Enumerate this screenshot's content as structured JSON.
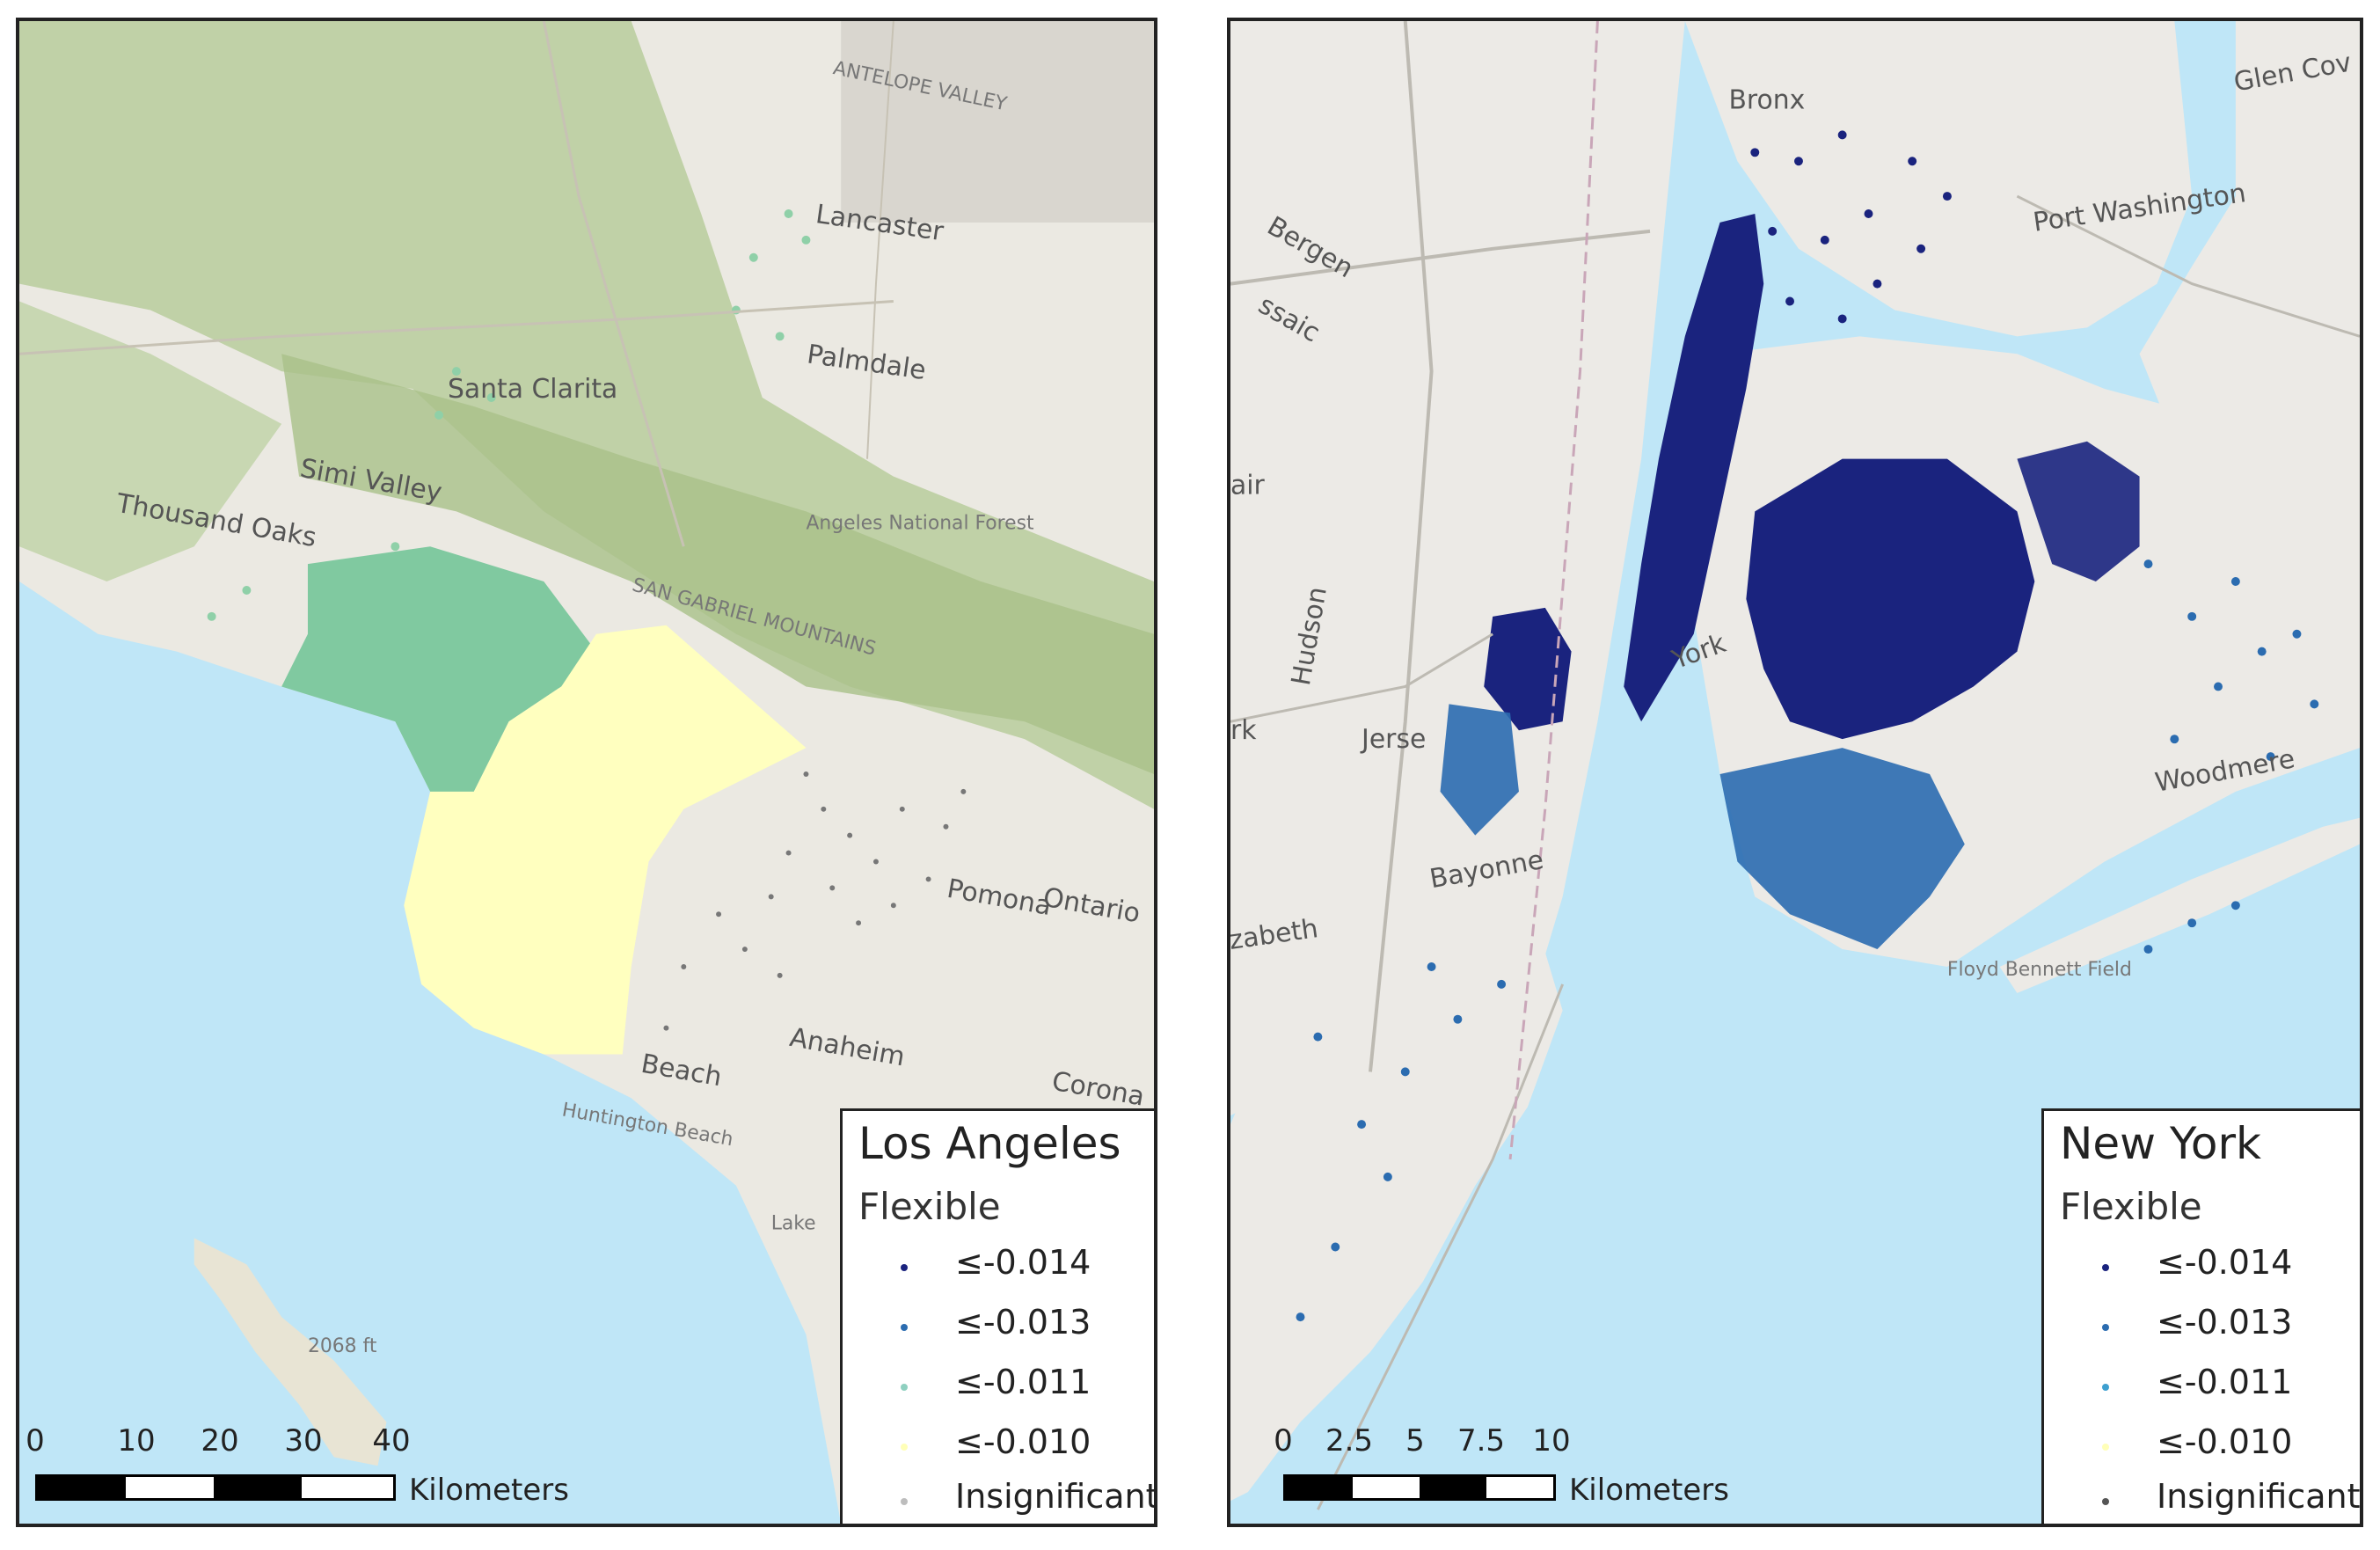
{
  "maps": {
    "la": {
      "places": {
        "antelope_valley": "ANTELOPE VALLEY",
        "lancaster": "Lancaster",
        "palmdale": "Palmdale",
        "santa_clarita": "Santa Clarita",
        "simi_valley": "Simi Valley",
        "thousand_oaks": "Thousand Oaks",
        "angeles_nf": "Angeles National Forest",
        "san_gabriel": "SAN GABRIEL MOUNTAINS",
        "pomona": "Pomona",
        "ontario": "Ontario",
        "anaheim": "Anaheim",
        "corona": "Corona",
        "huntington_beach": "Huntington Beach",
        "long_beach": "Beach",
        "lake": "Lake",
        "elev": "2068 ft"
      },
      "legend": {
        "title": "Los Angeles",
        "subtitle": "Flexible",
        "items": [
          {
            "label": "≤-0.014",
            "color": "#1a237e"
          },
          {
            "label": "≤-0.013",
            "color": "#2b6cb0"
          },
          {
            "label": "≤-0.011",
            "color": "#8fd0c0"
          },
          {
            "label": "≤-0.010",
            "color": "#ffffb8"
          },
          {
            "label": "Insignificant",
            "color": "#bdbdbd"
          }
        ]
      },
      "scale": {
        "ticks": [
          "0",
          "10",
          "20",
          "30",
          "40"
        ],
        "unit": "Kilometers"
      }
    },
    "ny": {
      "places": {
        "glen_cove": "Glen Cov",
        "bronx": "Bronx",
        "port_washington": "Port Washington",
        "bergen": "Bergen",
        "passaic": "ssaic",
        "fair": "air",
        "hudson": "Hudson",
        "jersey_city": "Jerse",
        "bayonne": "Bayonne",
        "elizabeth": "zabeth",
        "woodmere": "Woodmere",
        "floyd_bennett": "Floyd Bennett Field",
        "york": "York",
        "rk": "rk"
      },
      "legend": {
        "title": "New York",
        "subtitle": "Flexible",
        "items": [
          {
            "label": "≤-0.014",
            "color": "#1a237e"
          },
          {
            "label": "≤-0.013",
            "color": "#2b6cb0"
          },
          {
            "label": "≤-0.011",
            "color": "#3ea0d0"
          },
          {
            "label": "≤-0.010",
            "color": "#ffffb8"
          },
          {
            "label": "Insignificant",
            "color": "#555555"
          }
        ]
      },
      "scale": {
        "ticks": [
          "0",
          "2.5",
          "5",
          "7.5",
          "10"
        ],
        "unit": "Kilometers"
      }
    }
  }
}
